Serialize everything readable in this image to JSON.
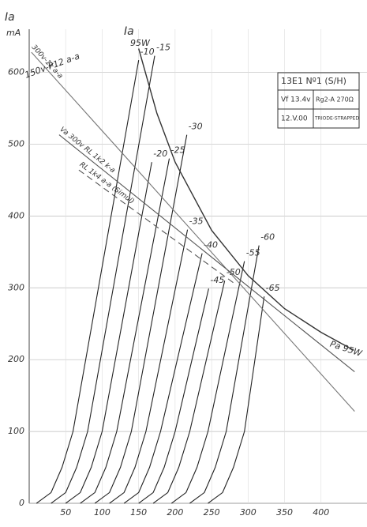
{
  "chart_data": {
    "type": "line",
    "y_label": "Ia",
    "y_unit": "mA",
    "top_label": "Ia",
    "top_power": "95W",
    "xlim": [
      0,
      463
    ],
    "ylim": [
      0,
      660
    ],
    "xticks": [
      50,
      100,
      150,
      200,
      250,
      300,
      350,
      400
    ],
    "yticks": [
      0,
      100,
      200,
      300,
      400,
      500,
      600
    ],
    "grid": true,
    "series": [
      {
        "name": "-10",
        "kind": "curve",
        "color": "#222",
        "x": [
          10,
          30,
          45,
          60,
          150
        ],
        "values": [
          0,
          15,
          50,
          100,
          617
        ]
      },
      {
        "name": "-15",
        "kind": "curve",
        "color": "#222",
        "x": [
          30,
          50,
          65,
          80,
          172
        ],
        "values": [
          0,
          15,
          50,
          100,
          623
        ]
      },
      {
        "name": "-20",
        "kind": "curve",
        "color": "#222",
        "x": [
          50,
          70,
          85,
          100,
          168
        ],
        "values": [
          0,
          15,
          50,
          100,
          475
        ]
      },
      {
        "name": "-25",
        "kind": "curve",
        "color": "#222",
        "x": [
          70,
          90,
          105,
          120,
          192
        ],
        "values": [
          0,
          15,
          50,
          100,
          480
        ]
      },
      {
        "name": "-30",
        "kind": "curve",
        "color": "#222",
        "x": [
          90,
          110,
          125,
          140,
          216
        ],
        "values": [
          0,
          15,
          50,
          100,
          513
        ]
      },
      {
        "name": "-35",
        "kind": "curve",
        "color": "#222",
        "x": [
          110,
          130,
          145,
          160,
          217
        ],
        "values": [
          0,
          15,
          50,
          100,
          381
        ]
      },
      {
        "name": "-40",
        "kind": "curve",
        "color": "#222",
        "x": [
          130,
          150,
          165,
          180,
          237
        ],
        "values": [
          0,
          15,
          50,
          100,
          348
        ]
      },
      {
        "name": "-45",
        "kind": "curve",
        "color": "#222",
        "x": [
          150,
          170,
          185,
          200,
          246
        ],
        "values": [
          0,
          15,
          50,
          100,
          299
        ]
      },
      {
        "name": "-50",
        "kind": "curve",
        "color": "#222",
        "x": [
          170,
          190,
          205,
          220,
          268
        ],
        "values": [
          0,
          15,
          50,
          100,
          310
        ]
      },
      {
        "name": "-55",
        "kind": "curve",
        "color": "#222",
        "x": [
          195,
          215,
          230,
          245,
          295
        ],
        "values": [
          0,
          15,
          50,
          100,
          337
        ]
      },
      {
        "name": "-60",
        "kind": "curve",
        "color": "#222",
        "x": [
          220,
          240,
          255,
          270,
          315
        ],
        "values": [
          0,
          15,
          50,
          100,
          359
        ]
      },
      {
        "name": "-65",
        "kind": "curve",
        "color": "#222",
        "x": [
          245,
          265,
          280,
          295,
          322
        ],
        "values": [
          0,
          15,
          50,
          100,
          288
        ]
      },
      {
        "name": "Pa 95W",
        "kind": "limit",
        "color": "#333",
        "x": [
          150,
          175,
          200,
          250,
          300,
          350,
          400,
          445
        ],
        "values": [
          633,
          543,
          475,
          380,
          317,
          271,
          238,
          213
        ]
      },
      {
        "name": "300v-1k a-a",
        "kind": "load",
        "color": "#777",
        "x": [
          3,
          446
        ],
        "values": [
          628,
          128
        ]
      },
      {
        "name": "Va 300v RL 1k2 k-a",
        "kind": "load",
        "color": "#555",
        "x": [
          41,
          446
        ],
        "values": [
          513,
          183
        ]
      },
      {
        "name": "RL 1k4 a-a (Simul)",
        "kind": "load",
        "style": "dashed",
        "color": "#555",
        "x": [
          68,
          284
        ],
        "values": [
          464,
          304
        ]
      }
    ],
    "note": "150v-P12 a-a",
    "info_box": {
      "title": "13E1 Nº1 (S/H)",
      "rows": [
        [
          "Vf 13.4v",
          "Rg2-A 270Ω"
        ],
        [
          "12.V.00",
          "TRIODE-STRAPPED"
        ]
      ]
    }
  }
}
